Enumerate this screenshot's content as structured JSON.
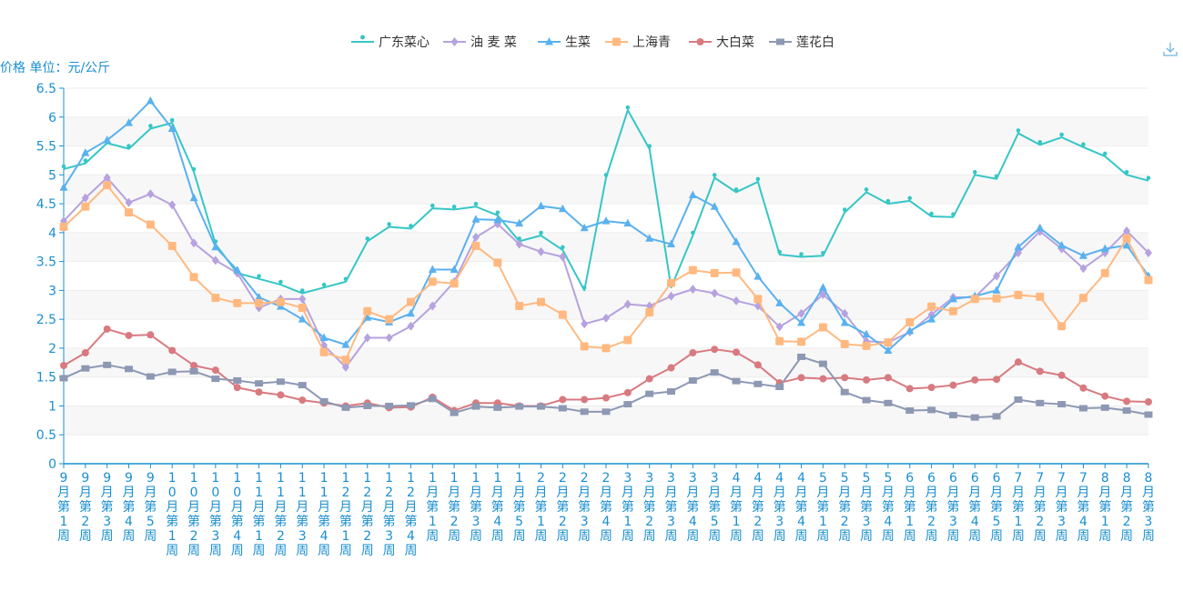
{
  "chart_data": {
    "type": "line",
    "ylabel": "价格 单位：元/公斤",
    "ylim": [
      0,
      6.5
    ],
    "yticks": [
      "0",
      "0.5",
      "1",
      "1.5",
      "2",
      "2.5",
      "3",
      "3.5",
      "4",
      "4.5",
      "5",
      "5.5",
      "6",
      "6.5"
    ],
    "categories": [
      "9月第1周",
      "9月第2周",
      "9月第3周",
      "9月第4周",
      "9月第5周",
      "10月第1周",
      "10月第2周",
      "10月第3周",
      "10月第4周",
      "11月第1周",
      "11月第2周",
      "11月第3周",
      "11月第4周",
      "12月第1周",
      "12月第2周",
      "12月第3周",
      "12月第4周",
      "1月第1周",
      "1月第2周",
      "1月第3周",
      "1月第4周",
      "1月第5周",
      "2月第1周",
      "2月第2周",
      "2月第3周",
      "2月第4周",
      "3月第1周",
      "3月第2周",
      "3月第3周",
      "3月第4周",
      "3月第5周",
      "4月第1周",
      "4月第2周",
      "4月第3周",
      "4月第4周",
      "5月第1周",
      "5月第2周",
      "5月第3周",
      "5月第4周",
      "6月第1周",
      "6月第2周",
      "6月第3周",
      "6月第4周",
      "6月第5周",
      "7月第1周",
      "7月第2周",
      "7月第3周",
      "7月第4周",
      "8月第1周",
      "8月第2周",
      "8月第3周"
    ],
    "series": [
      {
        "name": "广东菜心",
        "color": "#36c6c6",
        "marker": "pin",
        "values": [
          5.1,
          5.2,
          5.55,
          5.45,
          5.8,
          5.9,
          5.05,
          3.8,
          3.3,
          3.2,
          3.1,
          2.95,
          3.05,
          3.15,
          3.85,
          4.1,
          4.07,
          4.42,
          4.4,
          4.45,
          4.3,
          3.85,
          3.95,
          3.7,
          3.0,
          4.95,
          6.12,
          5.45,
          3.05,
          3.95,
          4.95,
          4.7,
          4.88,
          3.62,
          3.58,
          3.6,
          4.35,
          4.7,
          4.5,
          4.55,
          4.28,
          4.27,
          5.0,
          4.93,
          5.72,
          5.52,
          5.65,
          5.48,
          5.32,
          5.0,
          4.9
        ]
      },
      {
        "name": "油 麦 菜",
        "color": "#b6a2de",
        "marker": "diamond",
        "values": [
          4.2,
          4.6,
          4.95,
          4.52,
          4.67,
          4.48,
          3.82,
          3.52,
          3.3,
          2.7,
          2.85,
          2.85,
          2.05,
          1.67,
          2.18,
          2.18,
          2.38,
          2.73,
          3.15,
          3.92,
          4.15,
          3.8,
          3.67,
          3.58,
          2.42,
          2.52,
          2.76,
          2.73,
          2.9,
          3.02,
          2.95,
          2.82,
          2.73,
          2.37,
          2.6,
          2.93,
          2.6,
          2.12,
          2.1,
          2.28,
          2.58,
          2.88,
          2.88,
          3.25,
          3.65,
          4.02,
          3.72,
          3.38,
          3.65,
          4.03,
          3.65
        ]
      },
      {
        "name": "生菜",
        "color": "#5ab1ef",
        "marker": "triangle",
        "values": [
          4.78,
          5.38,
          5.6,
          5.9,
          6.28,
          5.8,
          4.6,
          3.75,
          3.35,
          2.88,
          2.72,
          2.5,
          2.18,
          2.06,
          2.53,
          2.45,
          2.6,
          3.36,
          3.36,
          4.23,
          4.22,
          4.16,
          4.46,
          4.41,
          4.08,
          4.2,
          4.16,
          3.9,
          3.8,
          4.65,
          4.45,
          3.84,
          3.24,
          2.78,
          2.44,
          3.05,
          2.44,
          2.24,
          1.96,
          2.3,
          2.5,
          2.85,
          2.9,
          3.0,
          3.75,
          4.08,
          3.78,
          3.6,
          3.72,
          3.78,
          3.25
        ]
      },
      {
        "name": "上海青",
        "color": "#ffb980",
        "marker": "square",
        "values": [
          4.1,
          4.45,
          4.82,
          4.35,
          4.14,
          3.77,
          3.23,
          2.87,
          2.78,
          2.78,
          2.8,
          2.7,
          1.93,
          1.8,
          2.64,
          2.5,
          2.8,
          3.15,
          3.12,
          3.77,
          3.48,
          2.73,
          2.8,
          2.58,
          2.03,
          2.0,
          2.14,
          2.62,
          3.13,
          3.35,
          3.3,
          3.31,
          2.85,
          2.12,
          2.11,
          2.36,
          2.07,
          2.04,
          2.1,
          2.45,
          2.72,
          2.64,
          2.85,
          2.86,
          2.92,
          2.89,
          2.38,
          2.87,
          3.3,
          3.9,
          3.18
        ]
      },
      {
        "name": "大白菜",
        "color": "#d87a80",
        "marker": "circle",
        "values": [
          1.7,
          1.92,
          2.33,
          2.22,
          2.23,
          1.96,
          1.7,
          1.62,
          1.32,
          1.24,
          1.19,
          1.1,
          1.05,
          1.0,
          1.05,
          0.97,
          0.98,
          1.15,
          0.92,
          1.05,
          1.05,
          1.0,
          1.0,
          1.11,
          1.11,
          1.14,
          1.23,
          1.47,
          1.66,
          1.92,
          1.98,
          1.93,
          1.71,
          1.4,
          1.49,
          1.47,
          1.49,
          1.45,
          1.49,
          1.3,
          1.32,
          1.36,
          1.45,
          1.46,
          1.76,
          1.6,
          1.53,
          1.31,
          1.17,
          1.08,
          1.07
        ]
      },
      {
        "name": "莲花白",
        "color": "#8d98b3",
        "marker": "rect",
        "values": [
          1.48,
          1.65,
          1.71,
          1.64,
          1.51,
          1.59,
          1.6,
          1.47,
          1.44,
          1.39,
          1.42,
          1.36,
          1.08,
          0.97,
          1.0,
          1.0,
          1.01,
          1.12,
          0.88,
          0.99,
          0.97,
          0.99,
          0.99,
          0.96,
          0.9,
          0.9,
          1.03,
          1.21,
          1.25,
          1.44,
          1.58,
          1.43,
          1.38,
          1.33,
          1.85,
          1.73,
          1.24,
          1.1,
          1.05,
          0.92,
          0.93,
          0.84,
          0.8,
          0.82,
          1.11,
          1.05,
          1.03,
          0.96,
          0.97,
          0.92,
          0.85
        ]
      }
    ]
  }
}
